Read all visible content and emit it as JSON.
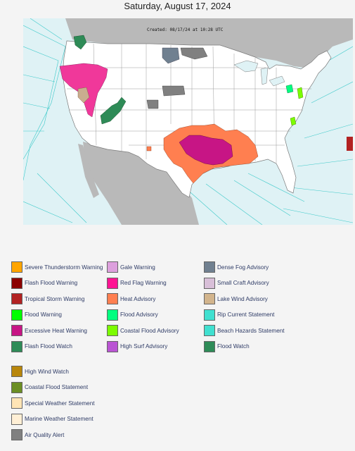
{
  "page": {
    "date_title": "Saturday, August 17, 2024",
    "created_stamp": "Created: 08/17/24 at 10:28 UTC"
  },
  "map": {
    "land_color": "#ffffff",
    "background_land_color": "#b9b9b9",
    "marine_color": "#dff2f5",
    "border_color": "#7a7a7a",
    "marine_zone_color": "#3cc9c9",
    "hazard_areas": [
      {
        "name": "red-flag-warning",
        "color": "#f0389a",
        "region": "Nevada / Idaho / Oregon"
      },
      {
        "name": "lake-wind-advisory",
        "color": "#c9ad8f",
        "region": "Nevada"
      },
      {
        "name": "flash-flood-watch",
        "color": "#2e8b57",
        "region": "Utah / Colorado / Washington"
      },
      {
        "name": "dense-fog-advisory",
        "color": "#708090",
        "region": "North Dakota"
      },
      {
        "name": "air-quality-alert",
        "color": "#808080",
        "region": "Dakotas / Nebraska / Minnesota"
      },
      {
        "name": "excessive-heat-warning",
        "color": "#c71585",
        "region": "Arkansas / Mississippi / Louisiana"
      },
      {
        "name": "heat-advisory",
        "color": "#ff7f50",
        "region": "South Central US"
      },
      {
        "name": "coastal-flood-advisory",
        "color": "#7cfc00",
        "region": "Mid-Atlantic Coast"
      },
      {
        "name": "flood-advisory",
        "color": "#00ff7f",
        "region": "Chesapeake"
      },
      {
        "name": "tropical-storm-warning",
        "color": "#b22222",
        "region": "Atlantic offshore"
      }
    ]
  },
  "legend": {
    "col1": [
      {
        "label": "Severe Thunderstorm Warning",
        "color": "#ffa500"
      },
      {
        "label": "Flash Flood Warning",
        "color": "#8b0000"
      },
      {
        "label": "Tropical Storm Warning",
        "color": "#b22222"
      },
      {
        "label": "Flood Warning",
        "color": "#00ff00"
      },
      {
        "label": "Excessive Heat Warning",
        "color": "#c71585"
      },
      {
        "label": "Flash Flood Watch",
        "color": "#2e8b57"
      }
    ],
    "col2": [
      {
        "label": "Gale Warning",
        "color": "#dda0dd"
      },
      {
        "label": "Red Flag Warning",
        "color": "#ff1493"
      },
      {
        "label": "Heat Advisory",
        "color": "#ff7f50"
      },
      {
        "label": "Flood Advisory",
        "color": "#00ff7f"
      },
      {
        "label": "Coastal Flood Advisory",
        "color": "#7cfc00"
      },
      {
        "label": "High Surf Advisory",
        "color": "#ba55d3"
      }
    ],
    "col3": [
      {
        "label": "Dense Fog Advisory",
        "color": "#708090"
      },
      {
        "label": "Small Craft Advisory",
        "color": "#d8bfd8"
      },
      {
        "label": "Lake Wind Advisory",
        "color": "#d2b48c"
      },
      {
        "label": "Rip Current Statement",
        "color": "#40e0d0"
      },
      {
        "label": "Beach Hazards Statement",
        "color": "#40e0d0"
      },
      {
        "label": "Flood Watch",
        "color": "#2e8b57"
      }
    ],
    "group2": [
      {
        "label": "High Wind Watch",
        "color": "#b8860b"
      },
      {
        "label": "Coastal Flood Statement",
        "color": "#6b8e23"
      },
      {
        "label": "Special Weather Statement",
        "color": "#ffe4b5"
      },
      {
        "label": "Marine Weather Statement",
        "color": "#ffefd5"
      },
      {
        "label": "Air Quality Alert",
        "color": "#808080"
      }
    ]
  }
}
